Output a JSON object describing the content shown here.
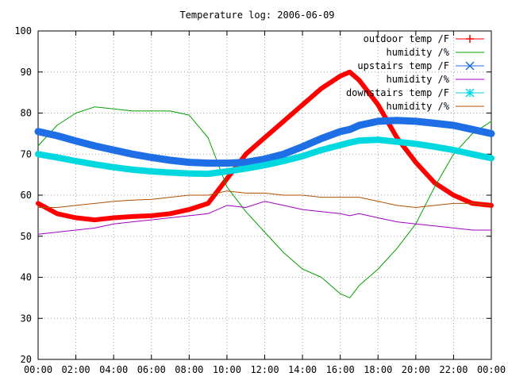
{
  "chart_data": {
    "type": "line",
    "title": "Temperature log: 2006-06-09",
    "xlabel": "",
    "ylabel": "",
    "xlim": [
      "00:00",
      "24:00"
    ],
    "ylim": [
      20,
      100
    ],
    "x_ticks": [
      "00:00",
      "02:00",
      "04:00",
      "06:00",
      "08:00",
      "10:00",
      "12:00",
      "14:00",
      "16:00",
      "18:00",
      "20:00",
      "22:00",
      "00:00"
    ],
    "y_ticks": [
      20,
      30,
      40,
      50,
      60,
      70,
      80,
      90,
      100
    ],
    "grid": true,
    "legend_position": "top-right",
    "x_hours": [
      0,
      1,
      2,
      3,
      4,
      5,
      6,
      7,
      8,
      9,
      10,
      11,
      12,
      13,
      14,
      15,
      16,
      16.5,
      17,
      18,
      19,
      20,
      21,
      22,
      23,
      24
    ],
    "series": [
      {
        "name": "outdoor temp /F",
        "color": "#ff0000",
        "marker": "plus",
        "values": [
          58,
          55.5,
          54.5,
          54,
          54.5,
          54.8,
          55,
          55.5,
          56.5,
          58,
          64,
          70,
          74,
          78,
          82,
          86,
          89,
          90,
          88,
          82,
          74,
          68,
          63,
          60,
          58,
          57.5
        ]
      },
      {
        "name": "humidity /%",
        "color": "#00a000",
        "marker": "none",
        "values": [
          72,
          77,
          80,
          81.5,
          81,
          80.5,
          80.5,
          80.5,
          79.5,
          74,
          62,
          56,
          51,
          46,
          42,
          40,
          36,
          35,
          38,
          42,
          47,
          53,
          62,
          70,
          75,
          78
        ]
      },
      {
        "name": "upstairs temp /F",
        "color": "#1e6fe6",
        "marker": "cross",
        "values": [
          75.5,
          74.5,
          73.2,
          72,
          71,
          70,
          69.2,
          68.5,
          68,
          67.8,
          67.8,
          68,
          68.8,
          70,
          71.8,
          73.8,
          75.5,
          76,
          77,
          78,
          78.2,
          78,
          77.5,
          77,
          76,
          75
        ]
      },
      {
        "name": "humidity /%",
        "color": "#a000c0",
        "marker": "none",
        "values": [
          50.5,
          51,
          51.5,
          52,
          53,
          53.5,
          54,
          54.5,
          55,
          55.5,
          57.5,
          57,
          58.5,
          57.5,
          56.5,
          56,
          55.5,
          55,
          55.5,
          54.5,
          53.5,
          53,
          52.5,
          52,
          51.5,
          51.5
        ]
      },
      {
        "name": "downstairs temp /F",
        "color": "#00d8e0",
        "marker": "star",
        "values": [
          70,
          69.2,
          68.3,
          67.5,
          66.8,
          66.2,
          65.8,
          65.5,
          65.3,
          65.2,
          65.8,
          66.5,
          67.3,
          68.3,
          69.5,
          71,
          72.2,
          72.8,
          73.3,
          73.5,
          73,
          72.5,
          71.8,
          71,
          70,
          69
        ]
      },
      {
        "name": "humidity /%",
        "color": "#b05000",
        "marker": "none",
        "values": [
          57,
          57,
          57.5,
          58,
          58.5,
          58.8,
          59,
          59.5,
          60,
          60,
          61,
          60.5,
          60.5,
          60,
          60,
          59.5,
          59.5,
          59.5,
          59.5,
          58.5,
          57.5,
          57,
          57.5,
          58,
          58,
          57.5
        ]
      }
    ]
  }
}
